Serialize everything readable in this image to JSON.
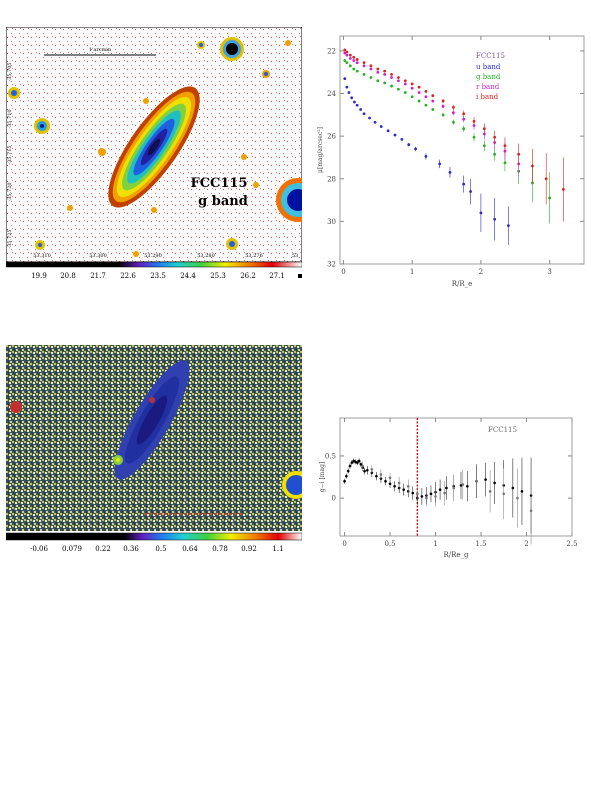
{
  "panel1": {
    "object_label": "FCC115",
    "band_label": "g band",
    "scale_label": "1'arcmin",
    "ra_ticks": [
      "53.310",
      "53.300",
      "53.290",
      "53.280",
      "53.276",
      "53"
    ],
    "dec_ticks": [
      "-35.705",
      "-35.710",
      "-35.715",
      "-35.720",
      "-35.725"
    ],
    "colorbar_ticks": [
      "19.9",
      "20.8",
      "21.7",
      "22.6",
      "23.5",
      "24.4",
      "25.3",
      "26.2",
      "27.1"
    ]
  },
  "panel2": {
    "colorbar_ticks": [
      "-0.06",
      "0.079",
      "0.22",
      "0.36",
      "0.5",
      "0.64",
      "0.78",
      "0.92",
      "1.1"
    ]
  },
  "chart_data": [
    {
      "type": "scatter",
      "title": "FCC115",
      "xlabel": "R/R_e",
      "ylabel": "μ[mag/arcsec²]",
      "xlim": [
        -0.05,
        3.5
      ],
      "ylim": [
        32,
        21.3
      ],
      "xticks": [
        "0",
        "1",
        "2",
        "3"
      ],
      "yticks": [
        "22",
        "24",
        "26",
        "28",
        "30",
        "32"
      ],
      "legend": [
        "u band",
        "g band",
        "r band",
        "i band"
      ],
      "legend_colors": [
        "#2a2ad0",
        "#25b025",
        "#d020d0",
        "#e02020"
      ],
      "series": [
        {
          "name": "u band",
          "color": "#2a2ad0",
          "x": [
            0.02,
            0.05,
            0.08,
            0.12,
            0.16,
            0.2,
            0.25,
            0.3,
            0.38,
            0.46,
            0.55,
            0.65,
            0.75,
            0.85,
            0.95,
            1.05,
            1.2,
            1.4,
            1.55,
            1.75,
            1.85,
            2.0,
            2.2,
            2.4
          ],
          "y": [
            23.3,
            23.7,
            23.95,
            24.2,
            24.4,
            24.55,
            24.75,
            24.95,
            25.15,
            25.35,
            25.55,
            25.75,
            25.95,
            26.15,
            26.4,
            26.6,
            26.95,
            27.3,
            27.7,
            28.25,
            28.6,
            29.6,
            29.9,
            30.2
          ],
          "err": [
            0.05,
            0.05,
            0.05,
            0.05,
            0.05,
            0.05,
            0.05,
            0.05,
            0.05,
            0.05,
            0.05,
            0.05,
            0.05,
            0.05,
            0.08,
            0.1,
            0.15,
            0.2,
            0.25,
            0.4,
            0.6,
            0.9,
            1.0,
            0.9
          ]
        },
        {
          "name": "g band",
          "color": "#25b025",
          "x": [
            0.02,
            0.05,
            0.1,
            0.15,
            0.2,
            0.3,
            0.4,
            0.5,
            0.6,
            0.7,
            0.8,
            0.9,
            1.0,
            1.1,
            1.2,
            1.3,
            1.45,
            1.6,
            1.75,
            1.9,
            2.05,
            2.2,
            2.35,
            2.55,
            2.75,
            3.0
          ],
          "y": [
            22.45,
            22.55,
            22.7,
            22.85,
            22.95,
            23.1,
            23.25,
            23.4,
            23.5,
            23.65,
            23.8,
            23.95,
            24.15,
            24.35,
            24.55,
            24.75,
            25.0,
            25.35,
            25.65,
            26.05,
            26.45,
            26.85,
            27.25,
            27.65,
            28.2,
            28.9
          ],
          "err": [
            0.03,
            0.03,
            0.03,
            0.03,
            0.03,
            0.03,
            0.03,
            0.03,
            0.03,
            0.03,
            0.03,
            0.03,
            0.04,
            0.05,
            0.06,
            0.07,
            0.1,
            0.12,
            0.15,
            0.2,
            0.25,
            0.3,
            0.4,
            0.6,
            0.9,
            1.2
          ]
        },
        {
          "name": "r band",
          "color": "#d020d0",
          "x": [
            0.02,
            0.05,
            0.1,
            0.15,
            0.2,
            0.3,
            0.4,
            0.5,
            0.6,
            0.7,
            0.8,
            0.9,
            1.0,
            1.1,
            1.2,
            1.3,
            1.45,
            1.6,
            1.75,
            1.9,
            2.05,
            2.2,
            2.35,
            2.55
          ],
          "y": [
            22.1,
            22.2,
            22.35,
            22.45,
            22.55,
            22.7,
            22.85,
            23.0,
            23.1,
            23.25,
            23.4,
            23.55,
            23.75,
            23.95,
            24.15,
            24.35,
            24.6,
            24.9,
            25.2,
            25.5,
            25.9,
            26.3,
            26.7,
            27.3
          ],
          "err": [
            0.03,
            0.03,
            0.03,
            0.03,
            0.03,
            0.03,
            0.03,
            0.03,
            0.03,
            0.03,
            0.03,
            0.03,
            0.04,
            0.05,
            0.06,
            0.07,
            0.1,
            0.12,
            0.15,
            0.2,
            0.25,
            0.3,
            0.4,
            0.6
          ]
        },
        {
          "name": "i band",
          "color": "#e02020",
          "x": [
            0.02,
            0.05,
            0.1,
            0.15,
            0.2,
            0.3,
            0.4,
            0.5,
            0.6,
            0.7,
            0.8,
            0.9,
            1.0,
            1.1,
            1.2,
            1.3,
            1.45,
            1.6,
            1.75,
            1.9,
            2.05,
            2.2,
            2.35,
            2.55,
            2.75,
            2.95,
            3.2
          ],
          "y": [
            21.95,
            22.05,
            22.2,
            22.3,
            22.4,
            22.55,
            22.7,
            22.85,
            22.95,
            23.1,
            23.25,
            23.4,
            23.55,
            23.7,
            23.9,
            24.1,
            24.35,
            24.65,
            24.95,
            25.3,
            25.65,
            26.05,
            26.45,
            26.85,
            27.4,
            28.0,
            28.5
          ],
          "err": [
            0.03,
            0.03,
            0.03,
            0.03,
            0.03,
            0.03,
            0.03,
            0.03,
            0.03,
            0.03,
            0.03,
            0.03,
            0.04,
            0.05,
            0.06,
            0.07,
            0.1,
            0.12,
            0.15,
            0.2,
            0.25,
            0.3,
            0.4,
            0.5,
            0.8,
            1.2,
            1.5
          ]
        }
      ]
    },
    {
      "type": "scatter",
      "title": "FCC115",
      "xlabel": "R/Re_g",
      "ylabel": "g−i [mag]",
      "xlim": [
        -0.05,
        2.5
      ],
      "ylim": [
        -0.45,
        0.95
      ],
      "xticks": [
        "0",
        "0.5",
        "1",
        "1.5",
        "2",
        "2.5"
      ],
      "yticks": [
        "0",
        "0.5"
      ],
      "vline_x": 0.8,
      "vline_color": "#cc1111",
      "series": [
        {
          "name": "",
          "color": "#000000",
          "x": [
            0.0,
            0.02,
            0.04,
            0.06,
            0.08,
            0.1,
            0.12,
            0.14,
            0.16,
            0.18,
            0.2,
            0.22,
            0.25,
            0.3,
            0.35,
            0.4,
            0.45,
            0.5,
            0.55,
            0.6,
            0.65,
            0.7,
            0.75,
            0.8,
            0.85,
            0.9,
            0.95,
            1.0,
            1.05,
            1.12,
            1.2,
            1.28,
            1.35,
            1.45,
            1.55,
            1.65,
            1.75,
            1.85,
            1.95,
            2.05
          ],
          "y": [
            0.2,
            0.26,
            0.32,
            0.38,
            0.42,
            0.44,
            0.43,
            0.42,
            0.44,
            0.4,
            0.36,
            0.32,
            0.33,
            0.3,
            0.26,
            0.23,
            0.2,
            0.17,
            0.14,
            0.12,
            0.1,
            0.08,
            0.06,
            0.0,
            0.02,
            0.03,
            0.05,
            0.07,
            0.1,
            0.12,
            0.14,
            0.15,
            0.14,
            0.2,
            0.22,
            0.18,
            0.15,
            0.12,
            0.08,
            0.03
          ],
          "err": [
            0.03,
            0.03,
            0.03,
            0.03,
            0.03,
            0.03,
            0.03,
            0.03,
            0.03,
            0.03,
            0.04,
            0.04,
            0.05,
            0.05,
            0.05,
            0.05,
            0.05,
            0.05,
            0.06,
            0.06,
            0.07,
            0.07,
            0.08,
            0.08,
            0.1,
            0.1,
            0.1,
            0.12,
            0.12,
            0.14,
            0.14,
            0.16,
            0.18,
            0.2,
            0.2,
            0.25,
            0.3,
            0.35,
            0.4,
            0.45
          ]
        },
        {
          "name": "",
          "color": "#777777",
          "x": [
            0.2,
            0.3,
            0.4,
            0.5,
            0.6,
            0.7,
            0.8,
            0.9,
            1.0,
            1.1,
            1.2,
            1.3,
            1.45,
            1.6,
            1.75,
            1.9,
            2.05
          ],
          "y": [
            0.38,
            0.34,
            0.28,
            0.24,
            0.18,
            0.14,
            0.05,
            0.0,
            0.02,
            0.06,
            0.12,
            0.16,
            0.2,
            0.08,
            0.05,
            0.0,
            -0.15
          ],
          "err": [
            0.05,
            0.05,
            0.06,
            0.06,
            0.07,
            0.08,
            0.1,
            0.1,
            0.12,
            0.14,
            0.16,
            0.18,
            0.2,
            0.25,
            0.3,
            0.35,
            0.4
          ]
        }
      ]
    }
  ]
}
